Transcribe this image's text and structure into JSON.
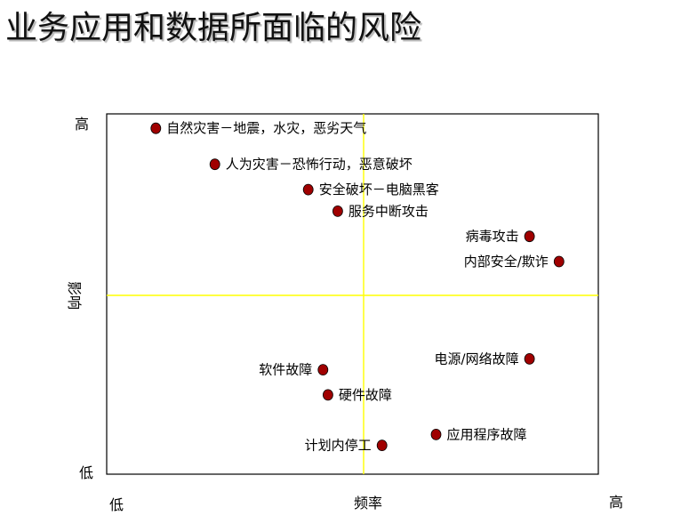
{
  "title": "业务应用和数据所面临的风险",
  "chart_data": {
    "type": "scatter",
    "xlabel": "频率",
    "ylabel": "影响",
    "x_ticks": {
      "low": "低",
      "high": "高"
    },
    "y_ticks": {
      "low": "低",
      "high": "高"
    },
    "xlim": [
      0,
      10
    ],
    "ylim": [
      0,
      10
    ],
    "grid": false,
    "quadrant_lines": {
      "x": 5,
      "y": 5,
      "color": "#ffff00"
    },
    "marker_color": "#a00000",
    "points": [
      {
        "label": "自然灾害－地震，水灾，恶劣天气",
        "x": 1.0,
        "y": 9.6,
        "label_side": "right"
      },
      {
        "label": "人为灾害－恐怖行动，恶意破坏",
        "x": 2.2,
        "y": 8.6,
        "label_side": "right"
      },
      {
        "label": "安全破坏－电脑黑客",
        "x": 4.1,
        "y": 7.9,
        "label_side": "right"
      },
      {
        "label": "服务中断攻击",
        "x": 4.7,
        "y": 7.3,
        "label_side": "right"
      },
      {
        "label": "病毒攻击",
        "x": 8.6,
        "y": 6.6,
        "label_side": "left"
      },
      {
        "label": "内部安全/欺诈",
        "x": 9.2,
        "y": 5.9,
        "label_side": "left"
      },
      {
        "label": "电源/网络故障",
        "x": 8.6,
        "y": 3.2,
        "label_side": "left"
      },
      {
        "label": "软件故障",
        "x": 4.4,
        "y": 2.9,
        "label_side": "left"
      },
      {
        "label": "硬件故障",
        "x": 4.5,
        "y": 2.2,
        "label_side": "right"
      },
      {
        "label": "应用程序故障",
        "x": 6.7,
        "y": 1.1,
        "label_side": "right"
      },
      {
        "label": "计划内停工",
        "x": 5.6,
        "y": 0.8,
        "label_side": "left"
      }
    ]
  }
}
